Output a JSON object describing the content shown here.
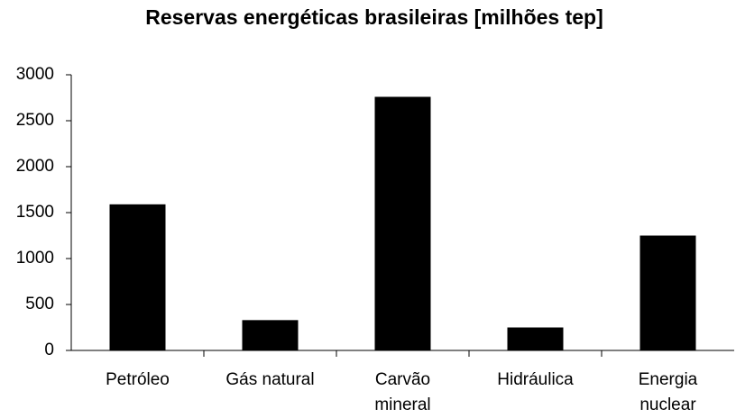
{
  "chart_data": {
    "type": "bar",
    "title": "Reservas energéticas brasileiras [milhões tep]",
    "categories": [
      "Petróleo",
      "Gás natural",
      "Carvão\nmineral",
      "Hidráulica",
      "Energia\nnuclear"
    ],
    "values": [
      1590,
      330,
      2760,
      250,
      1250
    ],
    "color": "#000000",
    "ylim": [
      0,
      3000
    ],
    "yticks": [
      0,
      500,
      1000,
      1500,
      2000,
      2500,
      3000
    ],
    "grid": false
  }
}
